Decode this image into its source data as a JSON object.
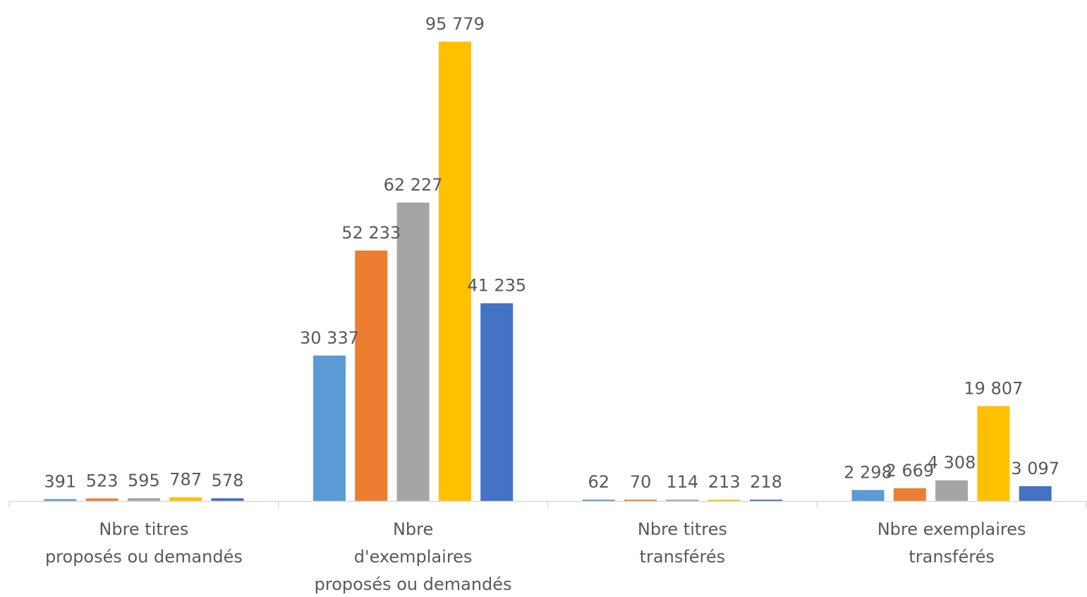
{
  "chart_data": {
    "type": "bar",
    "categories": [
      [
        "Nbre titres",
        "proposés ou demandés"
      ],
      [
        "Nbre",
        "d'exemplaires",
        "proposés ou demandés"
      ],
      [
        "Nbre titres",
        "transférés"
      ],
      [
        "Nbre exemplaires",
        "transférés"
      ]
    ],
    "series": [
      {
        "values": [
          391,
          30337,
          62,
          2298
        ],
        "labels": [
          "391",
          "30 337",
          "62",
          "2 298"
        ],
        "color": "#5B9BD5"
      },
      {
        "values": [
          523,
          52233,
          70,
          2669
        ],
        "labels": [
          "523",
          "52 233",
          "70",
          "2 669"
        ],
        "color": "#ED7D31"
      },
      {
        "values": [
          595,
          62227,
          114,
          4308
        ],
        "labels": [
          "595",
          "62 227",
          "114",
          "4 308"
        ],
        "color": "#A5A5A5"
      },
      {
        "values": [
          787,
          95779,
          213,
          19807
        ],
        "labels": [
          "787",
          "95 779",
          "213",
          "19 807"
        ],
        "color": "#FFC000"
      },
      {
        "values": [
          578,
          41235,
          218,
          3097
        ],
        "labels": [
          "578",
          "41 235",
          "218",
          "3 097"
        ],
        "color": "#4472C4"
      }
    ],
    "ylim": [
      0,
      95779
    ],
    "axis_color": "#D9D9D9",
    "text_color": "#595959",
    "grid": false,
    "legend": false
  }
}
